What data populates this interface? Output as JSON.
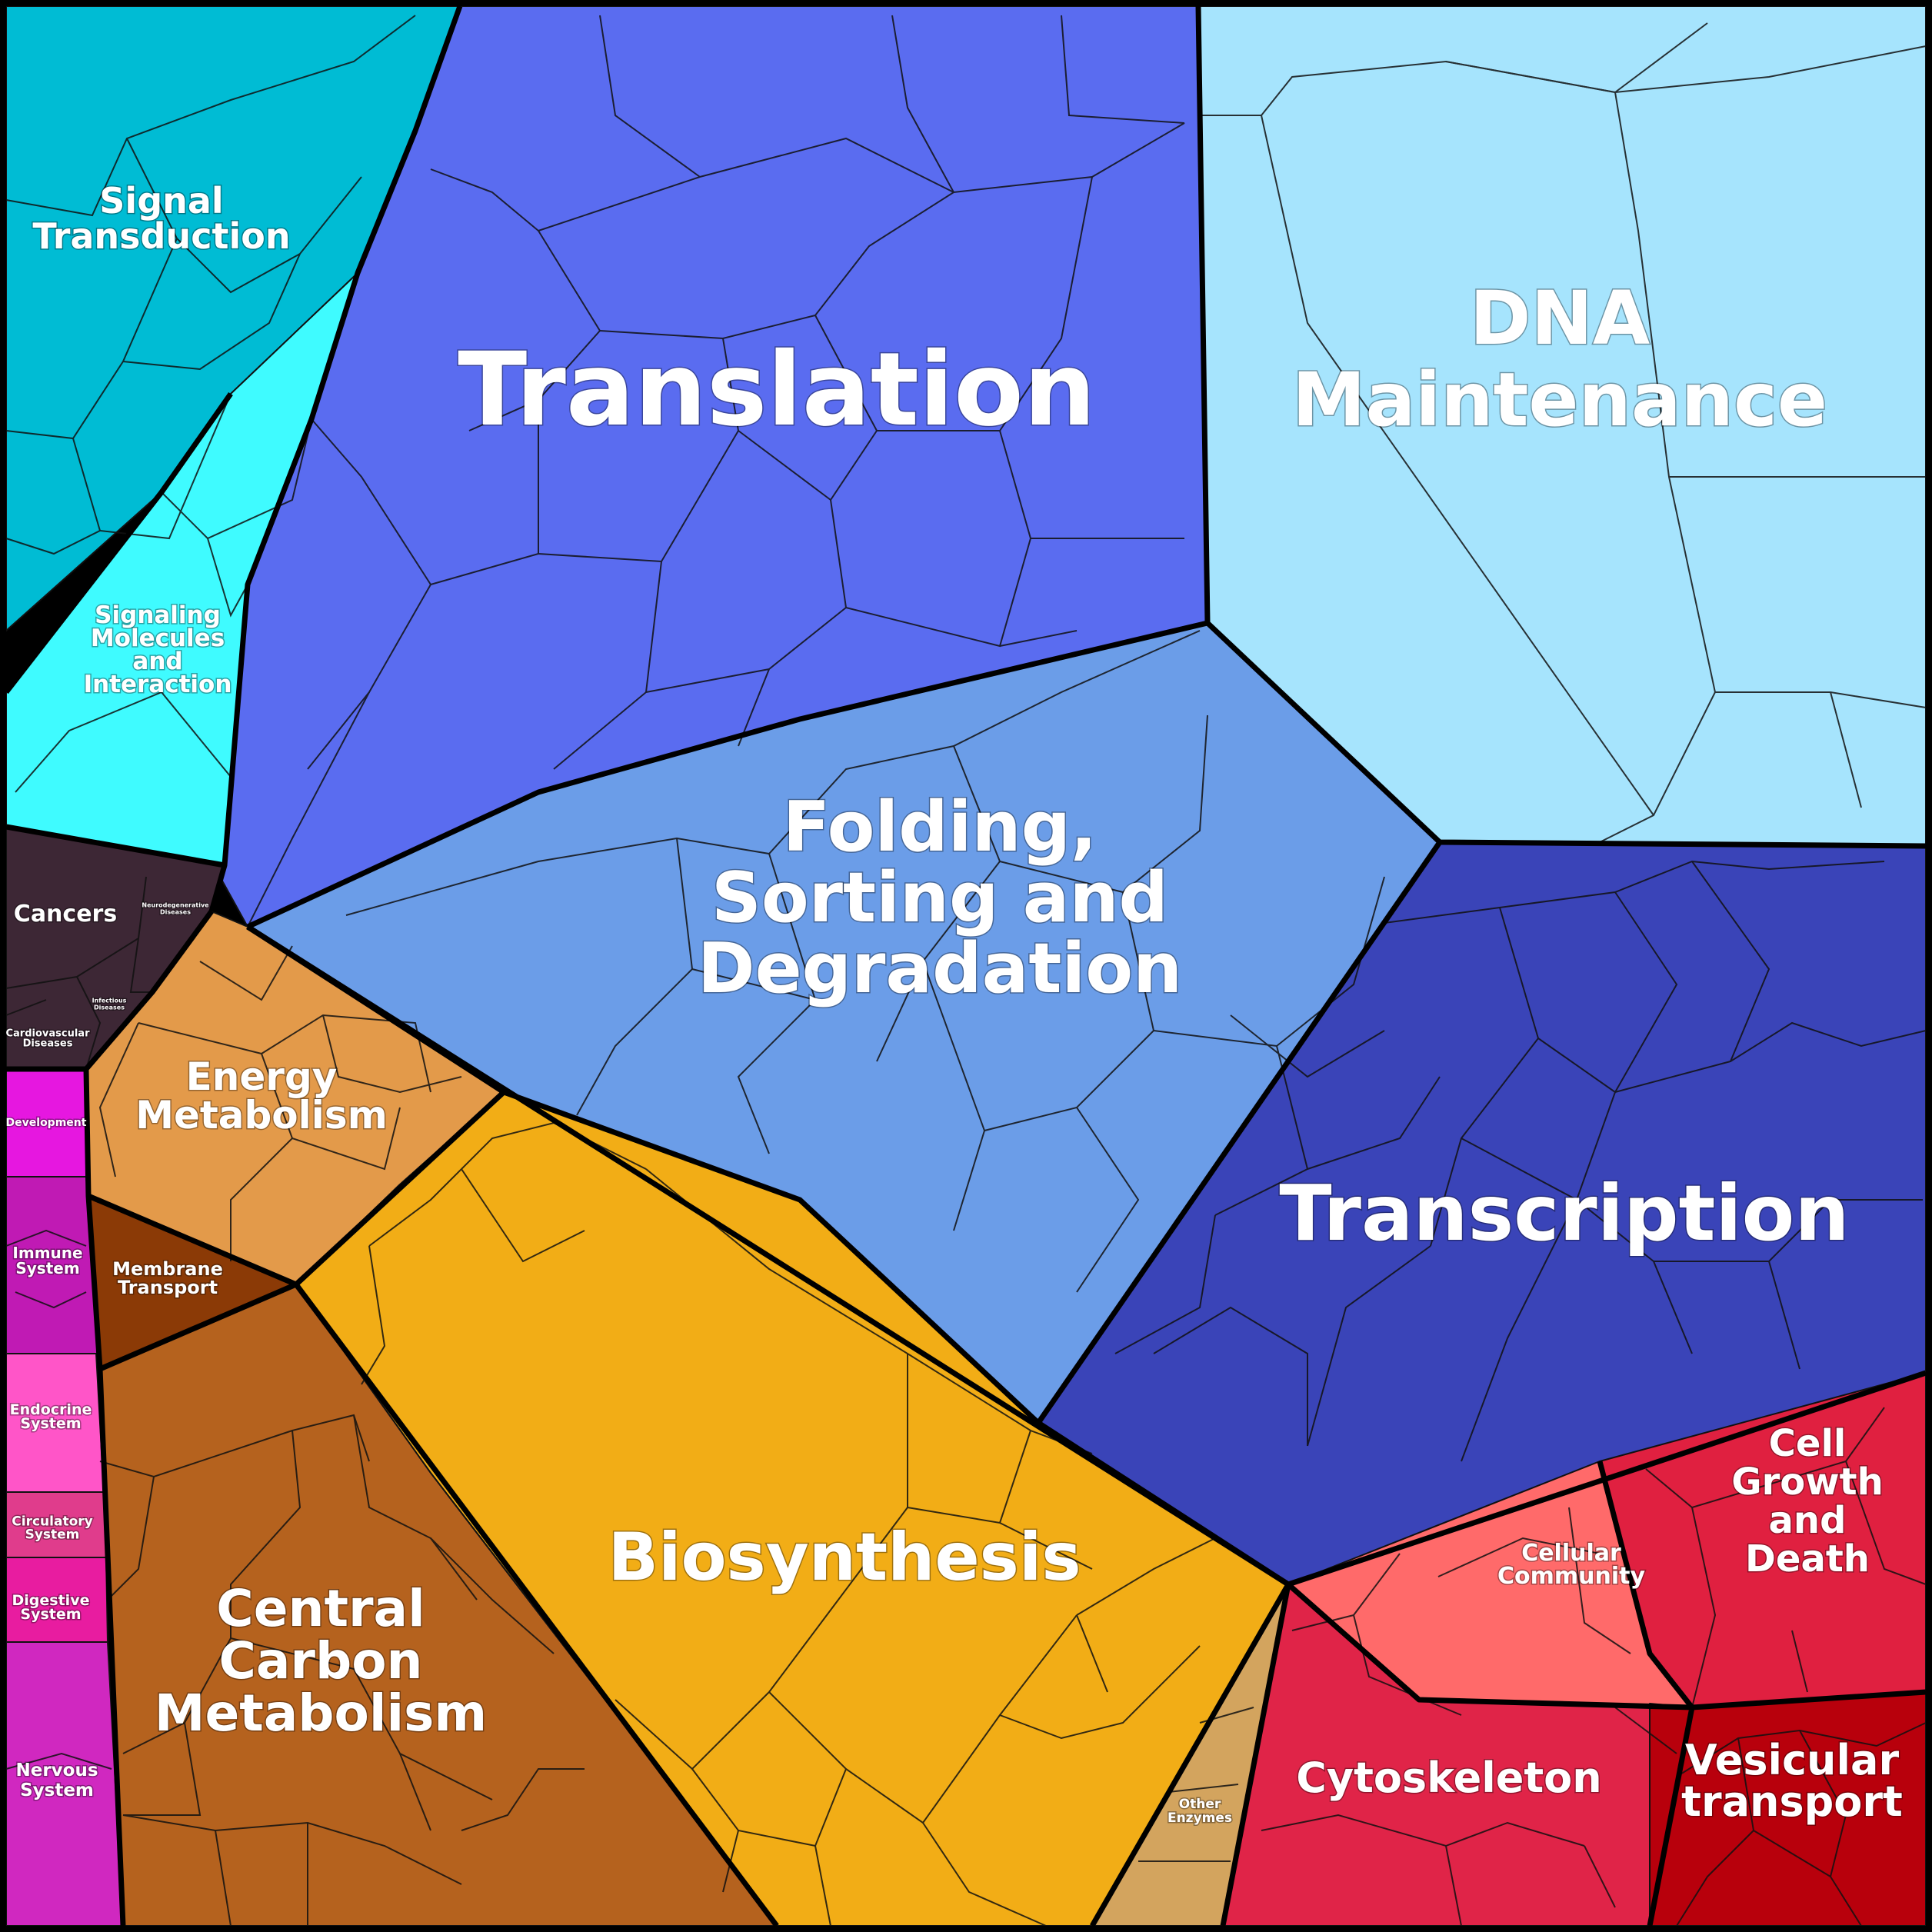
{
  "diagram": {
    "type": "voronoi-treemap",
    "colors": {
      "signal_transduction": "#00bcd4",
      "signaling_molecules": "#3ffbff",
      "translation": "#5a6cf0",
      "dna_maintenance": "#a6e4fd",
      "folding": "#6b9de8",
      "transcription": "#3a44b8",
      "energy_metabolism": "#e39a4a",
      "membrane_transport": "#8b3a06",
      "biosynthesis": "#f2ad16",
      "central_carbon": "#b5621e",
      "cancers": "#3d2735",
      "development": "#e617e0",
      "immune": "#c01ab4",
      "endocrine": "#ff55c8",
      "circulatory": "#e03c8c",
      "digestive": "#e81ca0",
      "nervous": "#d028c0",
      "cell_growth": "#e02040",
      "cellular_community": "#ff6a6a",
      "cytoskeleton": "#e02448",
      "vesicular": "#b8000c",
      "other_enzymes": "#d3a45e"
    },
    "labels": {
      "signal_transduction": [
        "Signal",
        "Transduction"
      ],
      "signaling_molecules": [
        "Signaling",
        "Molecules",
        "and",
        "Interaction"
      ],
      "translation": [
        "Translation"
      ],
      "dna_maintenance": [
        "DNA",
        "Maintenance"
      ],
      "folding": [
        "Folding,",
        "Sorting and",
        "Degradation"
      ],
      "transcription": [
        "Transcription"
      ],
      "energy_metabolism": [
        "Energy",
        "Metabolism"
      ],
      "membrane_transport": [
        "Membrane",
        "Transport"
      ],
      "biosynthesis": [
        "Biosynthesis"
      ],
      "central_carbon": [
        "Central",
        "Carbon",
        "Metabolism"
      ],
      "cancers": [
        "Cancers"
      ],
      "neurodegenerative": [
        "Neurodegenerative",
        "Diseases"
      ],
      "infectious": [
        "Infectious",
        "Diseases"
      ],
      "cardiovascular": [
        "Cardiovascular",
        "Diseases"
      ],
      "development": [
        "Development"
      ],
      "immune": [
        "Immune",
        "System"
      ],
      "endocrine": [
        "Endocrine",
        "System"
      ],
      "circulatory": [
        "Circulatory",
        "System"
      ],
      "digestive": [
        "Digestive",
        "System"
      ],
      "nervous": [
        "Nervous",
        "System"
      ],
      "cellular_community": [
        "Cellular",
        "Community"
      ],
      "cell_growth": [
        "Cell",
        "Growth",
        "and",
        "Death"
      ],
      "cytoskeleton": [
        "Cytoskeleton"
      ],
      "vesicular": [
        "Vesicular",
        "transport"
      ],
      "other_enzymes": [
        "Other",
        "Enzymes"
      ]
    }
  }
}
